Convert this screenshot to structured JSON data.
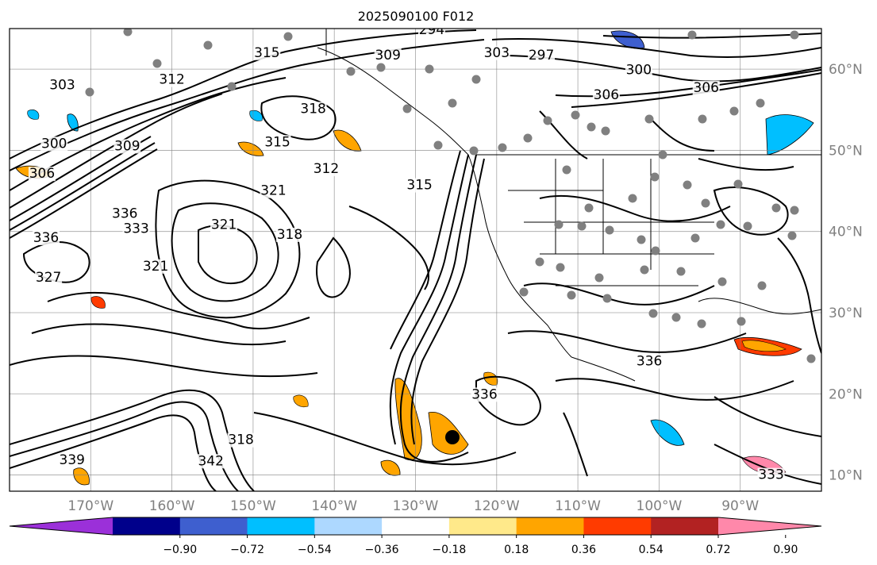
{
  "title": "2025090100 F012",
  "map": {
    "lon_range": [
      -180,
      -80
    ],
    "lat_range": [
      8,
      65
    ],
    "grid": true,
    "lon_labels": [
      "170°W",
      "160°W",
      "150°W",
      "140°W",
      "130°W",
      "120°W",
      "110°W",
      "100°W",
      "90°W"
    ],
    "lon_values": [
      -170,
      -160,
      -150,
      -140,
      -130,
      -120,
      -110,
      -100,
      -90
    ],
    "lat_labels": [
      "10°N",
      "20°N",
      "30°N",
      "40°N",
      "50°N",
      "60°N"
    ],
    "lat_values": [
      10,
      20,
      30,
      40,
      50,
      60
    ],
    "contour_labels": [
      {
        "text": "294",
        "lon": -128,
        "lat": 64.3
      },
      {
        "text": "297",
        "lon": -114.5,
        "lat": 61.2
      },
      {
        "text": "300",
        "lon": -102.5,
        "lat": 59.4
      },
      {
        "text": "303",
        "lon": -120,
        "lat": 61.5
      },
      {
        "text": "303",
        "lon": -173.5,
        "lat": 57.5
      },
      {
        "text": "309",
        "lon": -133.4,
        "lat": 61.2
      },
      {
        "text": "306",
        "lon": -106.5,
        "lat": 56.3
      },
      {
        "text": "306",
        "lon": -94.2,
        "lat": 57.2
      },
      {
        "text": "315",
        "lon": -148.3,
        "lat": 61.5
      },
      {
        "text": "312",
        "lon": -160,
        "lat": 58.2
      },
      {
        "text": "300",
        "lon": -174.5,
        "lat": 50.3
      },
      {
        "text": "306",
        "lon": -176,
        "lat": 46.6
      },
      {
        "text": "309",
        "lon": -165.5,
        "lat": 50
      },
      {
        "text": "318",
        "lon": -142.6,
        "lat": 54.6
      },
      {
        "text": "315",
        "lon": -147,
        "lat": 50.5
      },
      {
        "text": "312",
        "lon": -141,
        "lat": 47.2
      },
      {
        "text": "321",
        "lon": -147.5,
        "lat": 44.5
      },
      {
        "text": "315",
        "lon": -129.5,
        "lat": 45.2
      },
      {
        "text": "336",
        "lon": -165.8,
        "lat": 41.7
      },
      {
        "text": "333",
        "lon": -164.4,
        "lat": 39.8
      },
      {
        "text": "336",
        "lon": -175.5,
        "lat": 38.7
      },
      {
        "text": "321",
        "lon": -153.6,
        "lat": 40.3
      },
      {
        "text": "318",
        "lon": -145.5,
        "lat": 39.1
      },
      {
        "text": "321",
        "lon": -162,
        "lat": 35.2
      },
      {
        "text": "327",
        "lon": -175.2,
        "lat": 33.8
      },
      {
        "text": "336",
        "lon": -121.5,
        "lat": 19.4
      },
      {
        "text": "336",
        "lon": -101.2,
        "lat": 23.5
      },
      {
        "text": "318",
        "lon": -151.5,
        "lat": 13.8
      },
      {
        "text": "342",
        "lon": -155.2,
        "lat": 11.2
      },
      {
        "text": "339",
        "lon": -172.3,
        "lat": 11.3
      },
      {
        "text": "333",
        "lon": -86.2,
        "lat": 9.5
      }
    ]
  },
  "colorbar": {
    "colors": [
      "#9b30d9",
      "#00008b",
      "#3e5fcf",
      "#00bfff",
      "#add8ff",
      "#ffffff",
      "#ffe98a",
      "#ffa500",
      "#ff3b00",
      "#b22222",
      "#ff88aa"
    ],
    "tick_labels": [
      "−0.90",
      "−0.72",
      "−0.54",
      "−0.36",
      "−0.18",
      "0.18",
      "0.36",
      "0.54",
      "0.72",
      "0.90"
    ],
    "tick_values": [
      -0.9,
      -0.72,
      -0.54,
      -0.36,
      -0.18,
      0.18,
      0.36,
      0.54,
      0.72,
      0.9
    ],
    "extend": "both"
  },
  "marker_color": "#000000",
  "station_color": "#808080"
}
